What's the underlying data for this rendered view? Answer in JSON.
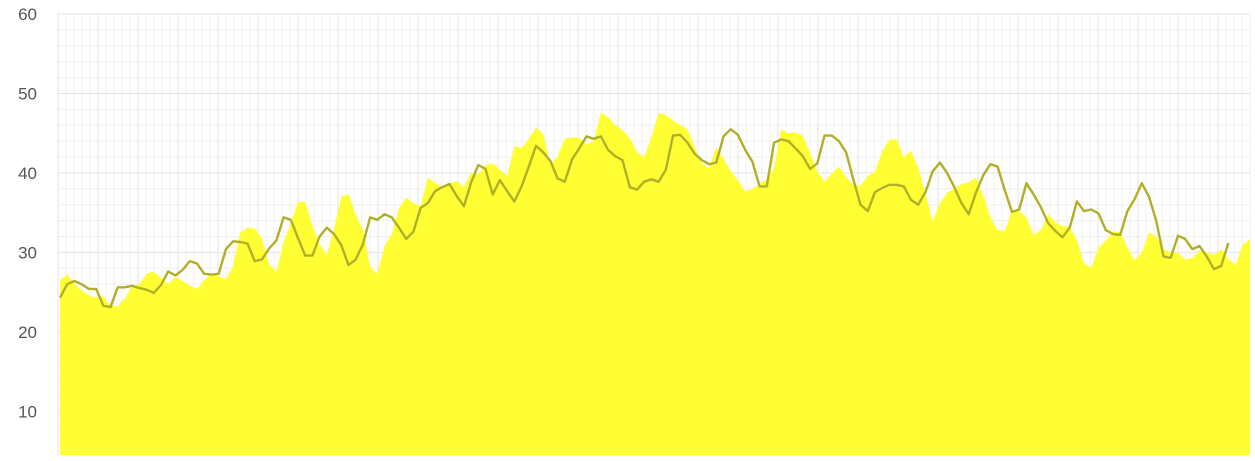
{
  "chart_data": {
    "type": "area",
    "title": "",
    "xlabel": "",
    "ylabel": "",
    "ylim": [
      4.5,
      60
    ],
    "yticks": [
      10,
      20,
      30,
      40,
      50,
      60
    ],
    "grid": true,
    "colors": {
      "area": "#ffff33",
      "line": "#b0b028",
      "grid_major": "#e3e3e3",
      "grid_minor": "#f0f0f0",
      "axis_text": "#555555"
    },
    "series": [
      {
        "kind": "area",
        "values": [
          26.5,
          27.2,
          26.1,
          25.2,
          24.6,
          24.3,
          24.5,
          23.3,
          23.2,
          24.2,
          25.8,
          26.0,
          27.3,
          27.6,
          26.8,
          26.0,
          26.9,
          26.4,
          25.8,
          25.4,
          26.5,
          27.4,
          27.0,
          26.6,
          28.3,
          32.5,
          33.1,
          33.0,
          31.8,
          28.5,
          27.6,
          31.3,
          33.6,
          36.4,
          36.3,
          33.4,
          31.0,
          29.7,
          33.0,
          37.0,
          37.3,
          34.8,
          32.8,
          28.2,
          27.3,
          30.8,
          32.3,
          35.6,
          36.9,
          36.2,
          35.8,
          39.4,
          38.8,
          38.2,
          38.6,
          39.0,
          38.2,
          40.0,
          39.8,
          41.0,
          41.2,
          40.4,
          39.6,
          43.4,
          43.1,
          44.3,
          45.7,
          44.9,
          41.0,
          42.1,
          44.3,
          44.5,
          44.4,
          43.6,
          44.0,
          47.6,
          47.0,
          46.0,
          45.4,
          44.4,
          42.6,
          42.0,
          44.5,
          47.5,
          47.3,
          46.6,
          46.0,
          45.5,
          43.2,
          41.2,
          40.6,
          43.2,
          41.8,
          40.2,
          39.1,
          37.7,
          38.0,
          38.6,
          39.2,
          40.6,
          45.5,
          45.0,
          45.1,
          44.7,
          42.5,
          40.2,
          38.9,
          39.9,
          40.8,
          39.5,
          38.5,
          38.4,
          39.6,
          40.2,
          42.7,
          44.2,
          44.2,
          42.0,
          42.8,
          40.7,
          37.4,
          33.9,
          36.2,
          37.5,
          38.0,
          38.6,
          38.8,
          39.4,
          37.2,
          34.4,
          32.8,
          32.7,
          35.4,
          35.2,
          34.4,
          32.2,
          32.8,
          34.8,
          33.8,
          33.3,
          33.2,
          31.6,
          28.6,
          28.1,
          30.6,
          31.5,
          32.6,
          32.6,
          30.6,
          29.0,
          30.0,
          32.5,
          32.0,
          30.4,
          30.0,
          30.0,
          29.1,
          29.3,
          30.2,
          30.0,
          29.7,
          30.4,
          29.2,
          28.4,
          31.0,
          31.6
        ]
      },
      {
        "kind": "line",
        "values": [
          24.3,
          26.0,
          26.4,
          26.0,
          25.4,
          25.4,
          23.3,
          23.1,
          25.6,
          25.6,
          25.8,
          25.5,
          25.3,
          24.9,
          25.9,
          27.6,
          27.1,
          27.8,
          28.9,
          28.6,
          27.3,
          27.2,
          27.3,
          30.4,
          31.4,
          31.3,
          31.1,
          28.9,
          29.1,
          30.5,
          31.5,
          34.4,
          34.1,
          31.8,
          29.6,
          29.6,
          32.0,
          33.1,
          32.3,
          30.9,
          28.4,
          29.1,
          31.0,
          34.4,
          34.1,
          34.8,
          34.4,
          33.1,
          31.7,
          32.6,
          35.6,
          36.2,
          37.7,
          38.2,
          38.6,
          37.1,
          35.8,
          38.8,
          41.0,
          40.5,
          37.3,
          39.1,
          37.7,
          36.4,
          38.3,
          40.8,
          43.4,
          42.6,
          41.5,
          39.3,
          38.9,
          41.7,
          43.1,
          44.6,
          44.3,
          44.6,
          42.9,
          42.1,
          41.6,
          38.2,
          37.9,
          38.9,
          39.2,
          38.9,
          40.4,
          44.7,
          44.8,
          43.8,
          42.4,
          41.6,
          41.1,
          41.3,
          44.6,
          45.5,
          44.8,
          42.9,
          41.4,
          38.3,
          38.3,
          43.8,
          44.2,
          44.0,
          43.1,
          42.1,
          40.5,
          41.2,
          44.7,
          44.7,
          44.0,
          42.6,
          39.2,
          36.0,
          35.2,
          37.6,
          38.1,
          38.5,
          38.5,
          38.3,
          36.6,
          36.0,
          37.6,
          40.2,
          41.3,
          40.0,
          38.2,
          36.2,
          34.8,
          37.5,
          39.7,
          41.1,
          40.8,
          37.8,
          35.1,
          35.4,
          38.7,
          37.3,
          35.7,
          33.7,
          32.7,
          31.9,
          33.1,
          36.4,
          35.2,
          35.4,
          34.9,
          32.8,
          32.3,
          32.2,
          35.2,
          36.7,
          38.7,
          37.0,
          34.0,
          29.5,
          29.3,
          32.1,
          31.7,
          30.4,
          30.8,
          29.5,
          27.9,
          28.3,
          31.2
        ]
      }
    ]
  }
}
